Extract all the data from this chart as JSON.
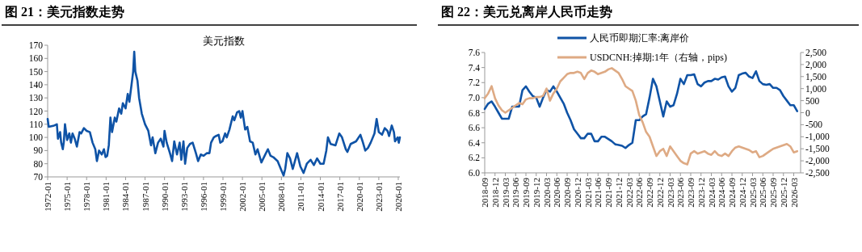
{
  "chart_data": [
    {
      "type": "line",
      "title": "图 21：美元指数走势",
      "subtitle": "美元指数",
      "x": [
        "1972-01",
        "1972-03",
        "1973-01",
        "1973-06",
        "1973-08",
        "1973-12",
        "1974-02",
        "1974-05",
        "1974-07",
        "1974-09",
        "1975-01",
        "1975-05",
        "1975-08",
        "1975-11",
        "1976-03",
        "1976-07",
        "1976-12",
        "1977-03",
        "1977-08",
        "1978-01",
        "1978-07",
        "1978-12",
        "1979-05",
        "1979-08",
        "1979-12",
        "1980-05",
        "1980-09",
        "1980-12",
        "1981-03",
        "1981-06",
        "1981-09",
        "1981-12",
        "1982-05",
        "1982-08",
        "1983-01",
        "1983-05",
        "1983-08",
        "1984-01",
        "1984-05",
        "1984-08",
        "1984-12",
        "1985-03",
        "1985-05",
        "1985-07",
        "1985-11",
        "1986-02",
        "1986-07",
        "1987-01",
        "1987-07",
        "1987-12",
        "1988-03",
        "1988-08",
        "1989-01",
        "1989-06",
        "1989-11",
        "1990-01",
        "1990-05",
        "1990-11",
        "1991-03",
        "1991-07",
        "1991-12",
        "1992-05",
        "1992-08",
        "1992-12",
        "1993-03",
        "1993-07",
        "1993-12",
        "1994-05",
        "1994-11",
        "1995-03",
        "1995-08",
        "1996-01",
        "1996-07",
        "1996-12",
        "1997-03",
        "1997-08",
        "1997-12",
        "1998-05",
        "1998-08",
        "1998-12",
        "1999-05",
        "1999-08",
        "2000-01",
        "2000-07",
        "2000-10",
        "2001-03",
        "2001-07",
        "2001-10",
        "2002-01",
        "2002-06",
        "2002-10",
        "2003-03",
        "2003-08",
        "2004-01",
        "2004-05",
        "2004-12",
        "2005-06",
        "2005-12",
        "2006-05",
        "2006-10",
        "2007-06",
        "2007-12",
        "2008-05",
        "2008-08",
        "2008-12",
        "2009-05",
        "2009-10",
        "2010-06",
        "2010-12",
        "2011-06",
        "2011-12",
        "2012-07",
        "2013-01",
        "2013-07",
        "2014-01",
        "2014-07",
        "2014-12",
        "2015-03",
        "2015-08",
        "2016-05",
        "2016-12",
        "2017-05",
        "2017-12",
        "2018-03",
        "2018-09",
        "2019-07",
        "2020-03",
        "2020-07",
        "2020-12",
        "2021-05",
        "2021-10",
        "2022-05",
        "2022-09",
        "2023-01",
        "2023-07",
        "2023-12",
        "2024-05",
        "2024-08",
        "2025-01",
        "2025-05",
        "2025-07",
        "2025-12",
        "2026-02",
        "2026-04"
      ],
      "xlim": [
        "1972-01",
        "2026-04"
      ],
      "xticks": [
        "1972-01",
        "1975-01",
        "1978-01",
        "1981-01",
        "1984-01",
        "1987-01",
        "1990-01",
        "1993-01",
        "1996-01",
        "1999-01",
        "2002-01",
        "2005-01",
        "2008-01",
        "2011-01",
        "2014-01",
        "2017-01",
        "2020-01",
        "2023-01",
        "2026-01"
      ],
      "ylim": [
        70,
        170
      ],
      "yticks": [
        70,
        80,
        90,
        100,
        110,
        120,
        130,
        140,
        150,
        160,
        170
      ],
      "series": [
        {
          "color": "#0f53a6",
          "values": [
            114,
            108,
            109,
            110,
            99,
            104,
            96,
            91,
            97,
            110,
            98,
            103,
            96,
            103,
            99,
            93,
            104,
            103,
            107,
            105,
            104,
            96,
            91,
            82,
            90,
            87,
            91,
            85,
            86,
            94,
            115,
            104,
            115,
            112,
            122,
            118,
            126,
            122,
            133,
            127,
            140,
            150,
            165,
            150,
            143,
            130,
            118,
            110,
            105,
            94,
            100,
            88,
            96,
            99,
            93,
            105,
            96,
            88,
            82,
            97,
            87,
            96,
            83,
            97,
            80,
            92,
            95,
            96,
            88,
            82,
            87,
            86,
            88,
            88,
            96,
            100,
            101,
            102,
            96,
            97,
            103,
            100,
            106,
            116,
            113,
            119,
            120,
            115,
            120,
            106,
            108,
            97,
            96,
            87,
            91,
            81,
            86,
            91,
            86,
            85,
            82,
            76,
            71,
            76,
            88,
            84,
            76,
            88,
            78,
            73,
            80,
            83,
            79,
            84,
            80,
            80,
            90,
            100,
            95,
            94,
            103,
            100,
            91,
            89,
            95,
            97,
            102,
            97,
            90,
            92,
            96,
            103,
            114,
            104,
            102,
            107,
            105,
            101,
            109,
            104,
            97,
            100,
            96,
            100
          ]
        }
      ]
    },
    {
      "type": "line",
      "title": "图 22：美元兑离岸人民币走势",
      "legend": "top",
      "x": [
        "2018-09",
        "2018-10",
        "2018-11",
        "2018-12",
        "2019-01",
        "2019-02",
        "2019-03",
        "2019-04",
        "2019-05",
        "2019-06",
        "2019-07",
        "2019-08",
        "2019-09",
        "2019-10",
        "2019-11",
        "2019-12",
        "2020-01",
        "2020-02",
        "2020-03",
        "2020-04",
        "2020-05",
        "2020-06",
        "2020-07",
        "2020-08",
        "2020-09",
        "2020-10",
        "2020-11",
        "2020-12",
        "2021-01",
        "2021-02",
        "2021-03",
        "2021-04",
        "2021-05",
        "2021-06",
        "2021-07",
        "2021-08",
        "2021-09",
        "2021-10",
        "2021-11",
        "2021-12",
        "2022-01",
        "2022-02",
        "2022-03",
        "2022-04",
        "2022-05",
        "2022-06",
        "2022-07",
        "2022-08",
        "2022-09",
        "2022-10",
        "2022-11",
        "2022-12",
        "2023-01",
        "2023-02",
        "2023-03",
        "2023-04",
        "2023-05",
        "2023-06",
        "2023-07",
        "2023-08",
        "2023-09",
        "2023-10",
        "2023-11",
        "2023-12",
        "2024-01",
        "2024-02",
        "2024-03",
        "2024-04",
        "2024-05",
        "2024-06",
        "2024-07",
        "2024-08",
        "2024-09",
        "2024-10",
        "2024-11",
        "2024-12",
        "2025-01",
        "2025-02",
        "2025-03",
        "2025-04",
        "2025-05",
        "2025-06",
        "2025-07",
        "2025-08",
        "2025-09",
        "2025-10",
        "2025-11",
        "2025-12",
        "2026-01",
        "2026-02",
        "2026-03",
        "2026-04"
      ],
      "xlim": [
        "2018-09",
        "2026-05"
      ],
      "xticks": [
        "2018-09",
        "2018-12",
        "2019-03",
        "2019-06",
        "2019-09",
        "2019-12",
        "2020-03",
        "2020-06",
        "2020-09",
        "2020-12",
        "2021-03",
        "2021-06",
        "2021-09",
        "2021-12",
        "2022-03",
        "2022-06",
        "2022-09",
        "2022-12",
        "2023-03",
        "2023-06",
        "2023-09",
        "2023-12",
        "2024-03",
        "2024-06",
        "2024-09",
        "2024-12",
        "2025-03",
        "2025-06",
        "2025-09",
        "2025-12",
        "2026-03"
      ],
      "ylim": [
        6.0,
        7.6
      ],
      "yticks": [
        {
          "value": 6.0,
          "label": "6.0"
        },
        6.2,
        6.4,
        6.6,
        6.8,
        {
          "value": 7.0,
          "label": "7.0"
        },
        7.2,
        7.4,
        7.6
      ],
      "y2lim": [
        -2500,
        2500
      ],
      "y2ticks": [
        {
          "value": -2500,
          "label": "-2,500"
        },
        {
          "value": -2000,
          "label": "-2,000"
        },
        {
          "value": -1500,
          "label": "-1,500"
        },
        {
          "value": -1000,
          "label": "-1,000"
        },
        -500,
        0,
        500,
        {
          "value": 1000,
          "label": "1,000"
        },
        {
          "value": 1500,
          "label": "1,500"
        },
        {
          "value": 2000,
          "label": "2,000"
        },
        {
          "value": 2500,
          "label": "2,500"
        }
      ],
      "series": [
        {
          "name": "人民币即期汇率:离岸价",
          "color": "#0f53a6",
          "values": [
            6.85,
            6.92,
            6.95,
            6.88,
            6.8,
            6.72,
            6.72,
            6.72,
            6.88,
            6.88,
            6.88,
            7.1,
            7.15,
            7.08,
            7.02,
            7.0,
            6.88,
            7.0,
            7.1,
            7.08,
            7.15,
            7.08,
            7.0,
            6.92,
            6.8,
            6.7,
            6.58,
            6.52,
            6.46,
            6.46,
            6.52,
            6.52,
            6.42,
            6.42,
            6.48,
            6.48,
            6.45,
            6.42,
            6.38,
            6.37,
            6.36,
            6.33,
            6.37,
            6.4,
            6.7,
            6.7,
            6.75,
            6.78,
            7.0,
            7.25,
            7.15,
            6.95,
            6.75,
            6.95,
            6.88,
            6.9,
            7.05,
            7.25,
            7.18,
            7.3,
            7.3,
            7.31,
            7.18,
            7.15,
            7.2,
            7.22,
            7.22,
            7.25,
            7.24,
            7.27,
            7.28,
            7.15,
            7.08,
            7.13,
            7.3,
            7.32,
            7.33,
            7.28,
            7.26,
            7.35,
            7.22,
            7.18,
            7.17,
            7.18,
            7.13,
            7.13,
            7.1,
            7.02,
            6.96,
            6.9,
            6.9,
            6.82
          ]
        },
        {
          "name": "USDCNH:掉期:1年（右轴，pips)",
          "color": "#deaa84",
          "axis": "y2",
          "values": [
            600,
            800,
            1100,
            600,
            300,
            100,
            0,
            100,
            200,
            300,
            400,
            350,
            550,
            600,
            600,
            650,
            650,
            700,
            1000,
            500,
            800,
            1000,
            1300,
            1450,
            1600,
            1650,
            1650,
            1700,
            1650,
            1400,
            1650,
            1750,
            1700,
            1600,
            1650,
            1700,
            1800,
            1850,
            1750,
            1650,
            1400,
            1100,
            1000,
            900,
            500,
            -100,
            -400,
            -800,
            -1000,
            -1400,
            -1800,
            -1600,
            -1500,
            -1800,
            -1400,
            -1600,
            -1800,
            -2000,
            -2100,
            -2150,
            -1700,
            -1600,
            -1700,
            -1650,
            -1600,
            -1700,
            -1750,
            -1600,
            -1750,
            -1800,
            -1700,
            -1800,
            -1600,
            -1450,
            -1400,
            -1450,
            -1500,
            -1550,
            -1650,
            -1600,
            -1850,
            -1800,
            -1700,
            -1600,
            -1500,
            -1450,
            -1400,
            -1350,
            -1300,
            -1400,
            -1650,
            -1600
          ]
        }
      ]
    }
  ]
}
